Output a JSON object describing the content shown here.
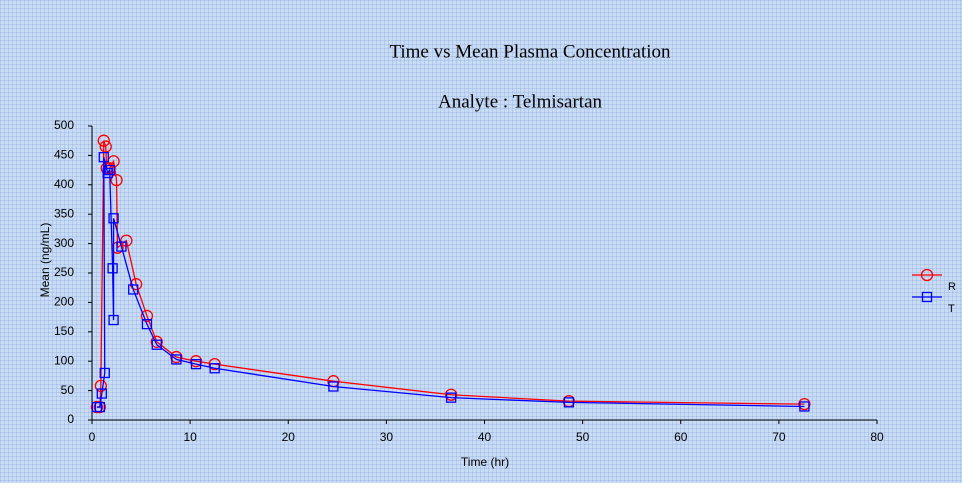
{
  "chart_data": {
    "type": "line",
    "title": "Time vs Mean Plasma Concentration",
    "subtitle": "Analyte : Telmisartan",
    "x_label": "Time (hr)",
    "y_label": "Mean (ng/mL)",
    "xlim": [
      0,
      80
    ],
    "xticks": [
      0,
      10,
      20,
      30,
      40,
      50,
      60,
      70,
      80
    ],
    "ylim": [
      0,
      500
    ],
    "yticks": [
      0,
      50,
      100,
      150,
      200,
      250,
      300,
      350,
      400,
      450,
      500
    ],
    "series": [
      {
        "name": "R",
        "color": "#ff0000",
        "marker": "circle",
        "x": [
          0.5,
          0.8,
          0.9,
          1.2,
          1.4,
          1.5,
          1.8,
          2.2,
          2.5,
          2.6,
          3.5,
          4.5,
          5.6,
          6.6,
          8.6,
          10.6,
          12.5,
          24.6,
          36.6,
          48.6,
          72.6
        ],
        "values": [
          22,
          22,
          58,
          475,
          465,
          428,
          428,
          440,
          408,
          293,
          305,
          231,
          177,
          133,
          107,
          100,
          95,
          66,
          43,
          32,
          27
        ]
      },
      {
        "name": "T",
        "color": "#0000ff",
        "marker": "square",
        "x": [
          0.5,
          0.8,
          1.0,
          1.3,
          1.2,
          1.6,
          1.8,
          2.1,
          2.2,
          2.2,
          3.0,
          4.2,
          5.6,
          6.6,
          8.6,
          10.6,
          12.5,
          24.6,
          36.6,
          48.6,
          72.6
        ],
        "values": [
          22,
          22,
          45,
          80,
          447,
          420,
          425,
          258,
          170,
          343,
          295,
          222,
          163,
          128,
          103,
          95,
          88,
          57,
          38,
          30,
          23
        ]
      }
    ]
  }
}
